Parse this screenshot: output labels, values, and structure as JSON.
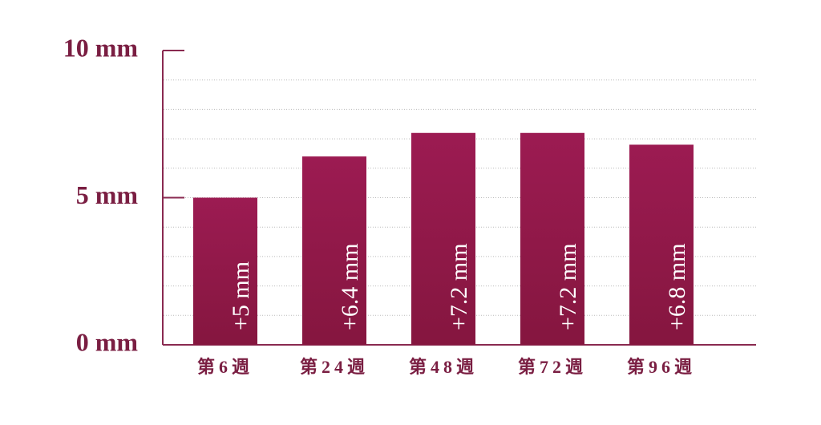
{
  "chart_data": {
    "type": "bar",
    "categories": [
      "第6週",
      "第24週",
      "第48週",
      "第72週",
      "第96週"
    ],
    "values": [
      5,
      6.4,
      7.2,
      7.2,
      6.8
    ],
    "value_labels": [
      "+5 mm",
      "+6.4 mm",
      "+7.2 mm",
      "+7.2 mm",
      "+6.8 mm"
    ],
    "color": "#9c1b52",
    "ylim": [
      0,
      10
    ],
    "yticks": [
      {
        "value": 0,
        "label": "0 mm"
      },
      {
        "value": 5,
        "label": "5 mm"
      },
      {
        "value": 10,
        "label": "10 mm"
      }
    ],
    "grid": true,
    "grid_lines": [
      1,
      2,
      3,
      4,
      5,
      6,
      7,
      8,
      9
    ]
  }
}
